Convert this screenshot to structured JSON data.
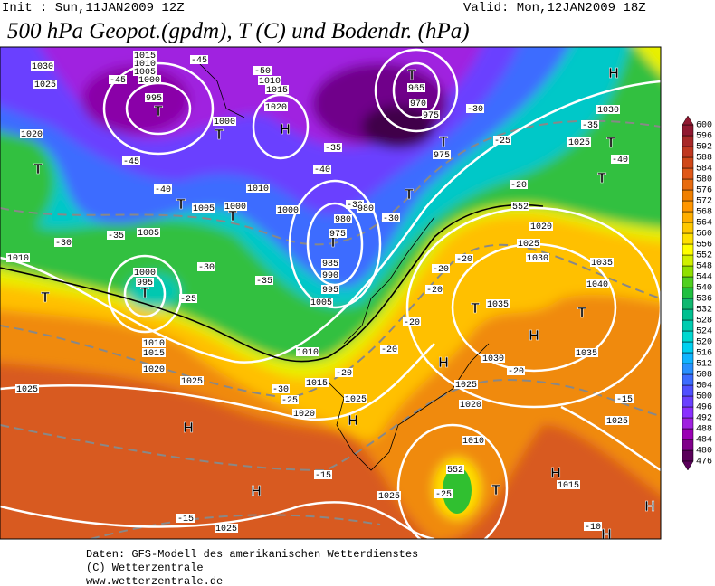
{
  "header": {
    "init": "Init : Sun,11JAN2009 12Z",
    "valid": "Valid: Mon,12JAN2009 18Z",
    "title": "500 hPa Geopot.(gpdm), T (C) und Bodendr. (hPa)"
  },
  "colorbar": {
    "levels": [
      476,
      480,
      484,
      488,
      492,
      496,
      500,
      504,
      508,
      512,
      516,
      520,
      524,
      528,
      532,
      536,
      540,
      544,
      548,
      552,
      556,
      560,
      564,
      568,
      572,
      576,
      580,
      584,
      588,
      592,
      596,
      600
    ],
    "colors": [
      "#5a005a",
      "#80008a",
      "#9a00b4",
      "#a020e0",
      "#8a30ff",
      "#6a40ff",
      "#5050ff",
      "#3c6cff",
      "#2890ff",
      "#10b4ff",
      "#00d0f0",
      "#00d8d0",
      "#00ccb0",
      "#00c090",
      "#10b870",
      "#20c040",
      "#50d020",
      "#90e000",
      "#d0f000",
      "#ffff00",
      "#ffe000",
      "#ffc800",
      "#ffae00",
      "#ff9600",
      "#f08000",
      "#e86c10",
      "#e05818",
      "#d04818",
      "#c03820",
      "#a82828",
      "#901830"
    ]
  },
  "map": {
    "labels": [
      "1030",
      "1025",
      "1015",
      "1010",
      "1005",
      "1000",
      "995",
      "T",
      "-45",
      "-45",
      "1020",
      "T",
      "-45",
      "-40",
      "T",
      "1000",
      "T",
      "1005",
      "1000",
      "T",
      "1010",
      "-50",
      "1010",
      "1015",
      "1020",
      "H",
      "T",
      "965",
      "970",
      "975",
      "-35",
      "-40",
      "1000",
      "T",
      "975",
      "985",
      "990",
      "995",
      "-30",
      "980",
      "980",
      "-30",
      "T",
      "975",
      "T",
      "-30",
      "-25",
      "1030",
      "H",
      "-35",
      "1025",
      "T",
      "-40",
      "T",
      "-20",
      "552",
      "1020",
      "1025",
      "1030",
      "1035",
      "1040",
      "T",
      "H",
      "1035",
      "1030",
      "-20",
      "1035",
      "T",
      "-30",
      "-35",
      "1005",
      "1010",
      "-30",
      "-35",
      "1000",
      "995",
      "T",
      "-25",
      "T",
      "1005",
      "1010",
      "1010",
      "1015",
      "1020",
      "1025",
      "1025",
      "-30",
      "-25",
      "1020",
      "1015",
      "-20",
      "1025",
      "H",
      "H",
      "H",
      "-20",
      "-20",
      "-20",
      "-20",
      "-20",
      "H",
      "1025",
      "1020",
      "1010",
      "-25",
      "552",
      "T",
      "-15",
      "1025",
      "-15",
      "1025",
      "-15",
      "1025",
      "H",
      "1015",
      "H",
      "-10",
      "H"
    ]
  },
  "footer": {
    "lines": [
      "Daten: GFS-Modell des amerikanischen Wetterdienstes",
      "(C) Wetterzentrale",
      "www.wetterzentrale.de"
    ]
  }
}
